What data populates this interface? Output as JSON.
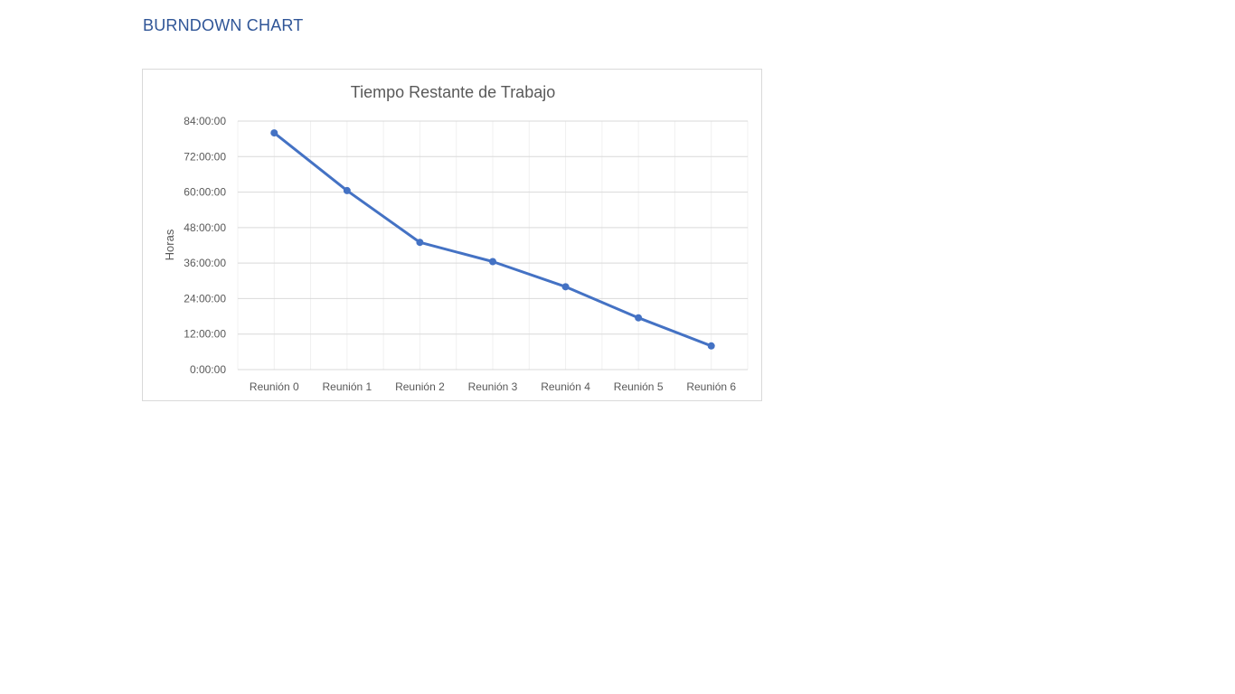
{
  "page": {
    "heading": "BURNDOWN CHART"
  },
  "colors": {
    "heading": "#2f5597",
    "series": "#4472c4",
    "gridline": "#d9d9d9",
    "minor_gridline": "#f0f0f0",
    "text": "#595959"
  },
  "chart_data": {
    "type": "line",
    "title": "Tiempo Restante de Trabajo",
    "xlabel": "",
    "ylabel": "Horas",
    "categories": [
      "Reunión 0",
      "Reunión 1",
      "Reunión 2",
      "Reunión 3",
      "Reunión 4",
      "Reunión 5",
      "Reunión 6"
    ],
    "series": [
      {
        "values": [
          80,
          60.5,
          43,
          36.5,
          28,
          17.5,
          8
        ]
      }
    ],
    "ylim": [
      0,
      84
    ],
    "yticks": [
      0,
      12,
      24,
      36,
      48,
      60,
      72,
      84
    ],
    "ytick_labels": [
      "0:00:00",
      "12:00:00",
      "24:00:00",
      "36:00:00",
      "48:00:00",
      "60:00:00",
      "72:00:00",
      "84:00:00"
    ],
    "y_unit": "hours",
    "grid": true,
    "markers": true,
    "legend": "none"
  }
}
